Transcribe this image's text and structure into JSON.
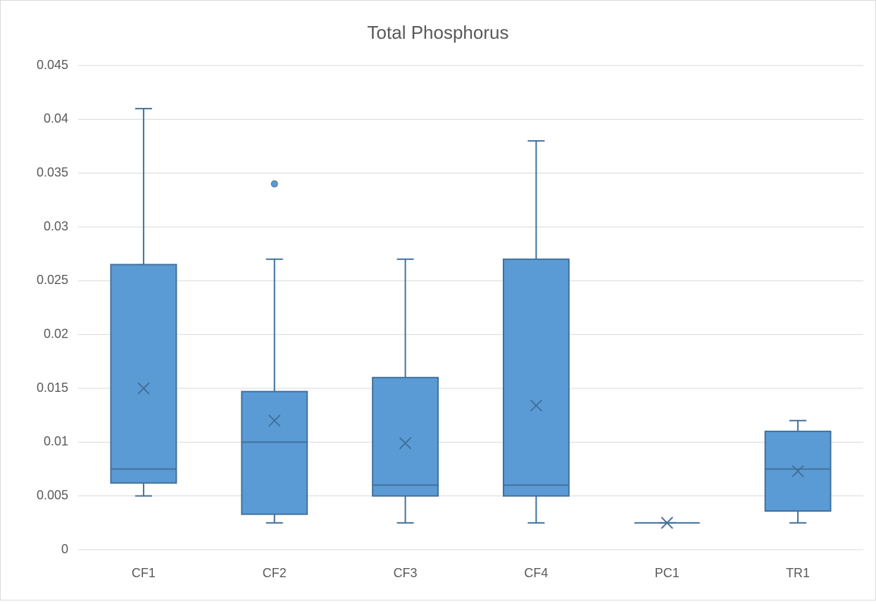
{
  "chart_data": {
    "type": "box",
    "title": "Total Phosphorus",
    "categories": [
      "CF1",
      "CF2",
      "CF3",
      "CF4",
      "PC1",
      "TR1"
    ],
    "min": [
      0.005,
      0.0025,
      0.0025,
      0.0025,
      0.0025,
      0.0025
    ],
    "q1": [
      0.0062,
      0.0033,
      0.005,
      0.005,
      0.0025,
      0.0036
    ],
    "median": [
      0.0075,
      0.01,
      0.006,
      0.006,
      0.0025,
      0.0075
    ],
    "q3": [
      0.0265,
      0.0147,
      0.016,
      0.027,
      0.0025,
      0.011
    ],
    "max": [
      0.041,
      0.027,
      0.027,
      0.038,
      0.0025,
      0.012
    ],
    "mean": [
      0.015,
      0.012,
      0.0099,
      0.0134,
      0.0025,
      0.0073
    ],
    "outliers": [
      [],
      [
        0.034
      ],
      [],
      [],
      [],
      []
    ],
    "color": "#5b9bd5",
    "ylim": [
      0,
      0.045
    ],
    "yticks": [
      0,
      0.005,
      0.01,
      0.015,
      0.02,
      0.025,
      0.03,
      0.035,
      0.04,
      0.045
    ],
    "grid": true
  }
}
